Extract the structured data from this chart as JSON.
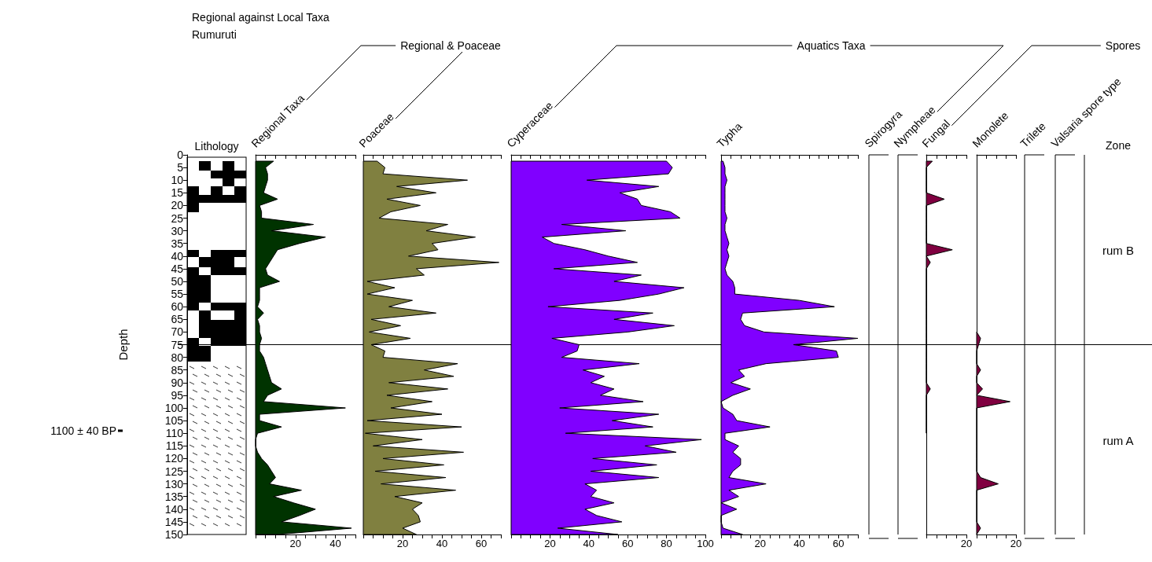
{
  "chart_data": [
    {
      "type": "other",
      "title": "Regional against Local Taxa",
      "subtitle": "Rumuruti",
      "xlabel": "Lithology"
    },
    {
      "type": "area",
      "orientation": "horizontal",
      "title": "Regional Taxa",
      "color": "#003300",
      "tick_labels": "x",
      "ylim": [
        150,
        0
      ],
      "xlim": [
        0,
        50
      ],
      "xticks": [
        {
          "value": 0,
          "label": null
        },
        {
          "value": 5,
          "label": null
        },
        {
          "value": 10,
          "label": null
        },
        {
          "value": 15,
          "label": null
        },
        20,
        {
          "value": 25,
          "label": null
        },
        {
          "value": 30,
          "label": null
        },
        {
          "value": 35,
          "label": null
        },
        40,
        {
          "value": 45,
          "label": null
        },
        {
          "value": 50,
          "label": null
        }
      ],
      "ref_lines": [
        {
          "axis": "y",
          "value": 75
        }
      ],
      "annotations": [
        "Regional & Poaceae",
        "1100 ± 40 BP"
      ],
      "x": [
        2.5,
        5,
        7.5,
        10,
        12.5,
        15,
        17.5,
        20,
        22.5,
        25,
        27.5,
        30,
        32.5,
        35,
        37.5,
        40,
        42.5,
        45,
        47.5,
        50,
        52.5,
        55,
        57.5,
        60,
        62.5,
        65,
        67.5,
        70,
        72.5,
        75,
        77.5,
        80,
        82.5,
        85,
        87.5,
        90,
        92.5,
        95,
        97.5,
        100,
        102.5,
        105,
        107.5,
        110,
        112.5,
        115,
        117.5,
        120,
        122.5,
        125,
        127.5,
        130,
        132.5,
        135,
        137.5,
        140,
        142.5,
        145,
        147.5,
        150
      ],
      "values": [
        9,
        5,
        6,
        6,
        5,
        4,
        11,
        2,
        3,
        3,
        29,
        8,
        35,
        22,
        11,
        9,
        7,
        5,
        6,
        12,
        2,
        2,
        2,
        1,
        4,
        1,
        2,
        2,
        3,
        2,
        2,
        4,
        5,
        6,
        7,
        8,
        13,
        6,
        4,
        45,
        2,
        2,
        13,
        1,
        0,
        0,
        1,
        3,
        6,
        8,
        10,
        7,
        23,
        9,
        19,
        30,
        22,
        13,
        48,
        11
      ]
    },
    {
      "type": "area",
      "orientation": "horizontal",
      "title": "Poaceae",
      "color": "#808040",
      "tick_labels": "x",
      "ylim": [
        150,
        0
      ],
      "xlim": [
        0,
        70
      ],
      "xticks": [
        {
          "value": 0,
          "label": null
        },
        {
          "value": 5,
          "label": null
        },
        {
          "value": 10,
          "label": null
        },
        {
          "value": 15,
          "label": null
        },
        20,
        {
          "value": 25,
          "label": null
        },
        {
          "value": 30,
          "label": null
        },
        {
          "value": 35,
          "label": null
        },
        40,
        {
          "value": 45,
          "label": null
        },
        {
          "value": 50,
          "label": null
        },
        {
          "value": 55,
          "label": null
        },
        60,
        {
          "value": 65,
          "label": null
        },
        {
          "value": 70,
          "label": null
        }
      ],
      "ref_lines": [
        {
          "axis": "y",
          "value": 75
        }
      ],
      "x": [
        2.5,
        5,
        7.5,
        10,
        12.5,
        15,
        17.5,
        20,
        22.5,
        25,
        27.5,
        30,
        32.5,
        35,
        37.5,
        40,
        42.5,
        45,
        47.5,
        50,
        52.5,
        55,
        57.5,
        60,
        62.5,
        65,
        67.5,
        70,
        72.5,
        75,
        77.5,
        80,
        82.5,
        85,
        87.5,
        90,
        92.5,
        95,
        97.5,
        100,
        102.5,
        105,
        107.5,
        110,
        112.5,
        115,
        117.5,
        120,
        122.5,
        125,
        127.5,
        130,
        132.5,
        135,
        137.5,
        140,
        142.5,
        145,
        147.5,
        150
      ],
      "values": [
        7,
        11,
        10,
        53,
        17,
        37,
        12,
        29,
        14,
        8,
        43,
        32,
        57,
        35,
        38,
        23,
        69,
        27,
        31,
        2,
        16,
        2,
        25,
        13,
        37,
        4,
        19,
        3,
        24,
        4,
        11,
        10,
        48,
        31,
        46,
        13,
        43,
        12,
        35,
        14,
        40,
        2,
        50,
        1,
        30,
        5,
        51,
        10,
        41,
        6,
        42,
        9,
        47,
        16,
        30,
        25,
        28,
        29,
        20,
        27
      ]
    },
    {
      "type": "area",
      "orientation": "horizontal",
      "title": "Cyperaceae",
      "color": "#8000ff",
      "tick_labels": "x",
      "ylim": [
        150,
        0
      ],
      "xlim": [
        0,
        100
      ],
      "xticks": [
        {
          "value": 0,
          "label": null
        },
        {
          "value": 5,
          "label": null
        },
        {
          "value": 10,
          "label": null
        },
        {
          "value": 15,
          "label": null
        },
        20,
        {
          "value": 25,
          "label": null
        },
        {
          "value": 30,
          "label": null
        },
        {
          "value": 35,
          "label": null
        },
        40,
        {
          "value": 45,
          "label": null
        },
        {
          "value": 50,
          "label": null
        },
        {
          "value": 55,
          "label": null
        },
        60,
        {
          "value": 65,
          "label": null
        },
        {
          "value": 70,
          "label": null
        },
        {
          "value": 75,
          "label": null
        },
        80,
        {
          "value": 85,
          "label": null
        },
        {
          "value": 90,
          "label": null
        },
        {
          "value": 95,
          "label": null
        },
        100
      ],
      "ref_lines": [
        {
          "axis": "y",
          "value": 75
        }
      ],
      "annotations": [
        "Aquatics Taxa"
      ],
      "x": [
        2.5,
        5,
        7.5,
        10,
        12.5,
        15,
        17.5,
        20,
        22.5,
        25,
        27.5,
        30,
        32.5,
        35,
        37.5,
        40,
        42.5,
        45,
        47.5,
        50,
        52.5,
        55,
        57.5,
        60,
        62.5,
        65,
        67.5,
        70,
        72.5,
        75,
        77.5,
        80,
        82.5,
        85,
        87.5,
        90,
        92.5,
        95,
        97.5,
        100,
        102.5,
        105,
        107.5,
        110,
        112.5,
        115,
        117.5,
        120,
        122.5,
        125,
        127.5,
        130,
        132.5,
        135,
        137.5,
        140,
        142.5,
        145,
        147.5,
        150
      ],
      "values": [
        80,
        83,
        81,
        39,
        76,
        56,
        65,
        67,
        82,
        87,
        26,
        59,
        16,
        22,
        38,
        50,
        65,
        22,
        67,
        53,
        89,
        76,
        56,
        19,
        73,
        53,
        84,
        60,
        21,
        35,
        34,
        26,
        66,
        37,
        48,
        41,
        53,
        46,
        68,
        25,
        76,
        52,
        73,
        28,
        98,
        69,
        85,
        42,
        75,
        41,
        76,
        38,
        44,
        41,
        53,
        38,
        44,
        57,
        24,
        55
      ]
    },
    {
      "type": "area",
      "orientation": "horizontal",
      "title": "Typha",
      "color": "#8000ff",
      "tick_labels": "x",
      "ylim": [
        150,
        0
      ],
      "xlim": [
        0,
        70
      ],
      "xticks": [
        {
          "value": 0,
          "label": null
        },
        {
          "value": 5,
          "label": null
        },
        {
          "value": 10,
          "label": null
        },
        {
          "value": 15,
          "label": null
        },
        20,
        {
          "value": 25,
          "label": null
        },
        {
          "value": 30,
          "label": null
        },
        {
          "value": 35,
          "label": null
        },
        40,
        {
          "value": 45,
          "label": null
        },
        {
          "value": 50,
          "label": null
        },
        {
          "value": 55,
          "label": null
        },
        60,
        {
          "value": 65,
          "label": null
        },
        {
          "value": 70,
          "label": null
        }
      ],
      "ref_lines": [
        {
          "axis": "y",
          "value": 75
        }
      ],
      "x": [
        2.5,
        5,
        7.5,
        10,
        12.5,
        15,
        17.5,
        20,
        22.5,
        25,
        27.5,
        30,
        32.5,
        35,
        37.5,
        40,
        42.5,
        45,
        47.5,
        50,
        52.5,
        55,
        57.5,
        60,
        62.5,
        65,
        67.5,
        70,
        72.5,
        75,
        77.5,
        80,
        82.5,
        85,
        87.5,
        90,
        92.5,
        95,
        97.5,
        100,
        102.5,
        105,
        107.5,
        110,
        112.5,
        115,
        117.5,
        120,
        122.5,
        125,
        127.5,
        130,
        132.5,
        135,
        137.5,
        140,
        142.5,
        145,
        147.5,
        150
      ],
      "values": [
        1,
        2,
        2,
        3,
        2,
        2,
        2,
        2,
        2,
        3,
        2,
        2,
        3,
        4,
        3,
        4,
        3,
        2,
        3,
        6,
        7,
        7,
        40,
        58,
        11,
        10,
        12,
        22,
        70,
        37,
        59,
        60,
        23,
        9,
        12,
        5,
        15,
        6,
        0,
        1,
        6,
        8,
        25,
        2,
        2,
        9,
        6,
        10,
        10,
        6,
        4,
        23,
        4,
        9,
        0,
        8,
        0,
        0,
        1,
        11
      ]
    },
    {
      "type": "other",
      "title": "Spirogyra"
    },
    {
      "type": "other",
      "title": "Nympheae"
    },
    {
      "type": "area",
      "orientation": "horizontal",
      "title": "Fungal",
      "color": "#800040",
      "tick_labels": "x",
      "ylim": [
        150,
        0
      ],
      "xlim": [
        0,
        20
      ],
      "xticks": [
        {
          "value": 0,
          "label": null
        },
        {
          "value": 5,
          "label": null
        },
        {
          "value": 10,
          "label": null
        },
        {
          "value": 15,
          "label": null
        },
        20
      ],
      "ref_lines": [
        {
          "axis": "y",
          "value": 75
        }
      ],
      "annotations": [
        "Spores"
      ],
      "x": [
        2.5,
        5,
        7.5,
        10,
        12.5,
        15,
        17.5,
        20,
        22.5,
        25,
        27.5,
        30,
        32.5,
        35,
        37.5,
        40,
        42.5,
        45,
        47.5,
        50,
        52.5,
        55,
        57.5,
        60,
        62.5,
        65,
        67.5,
        70,
        72.5,
        75,
        77.5,
        80,
        82.5,
        85,
        87.5,
        90,
        92.5,
        95,
        97.5,
        100,
        102.5,
        105,
        107.5,
        110
      ],
      "values": [
        3,
        0,
        0,
        0,
        0,
        0,
        9,
        0,
        0,
        0,
        0,
        0,
        0,
        0,
        13,
        0,
        2,
        0,
        0,
        0,
        0,
        0,
        0,
        0,
        0,
        0,
        0,
        0,
        0,
        0,
        0,
        0,
        0,
        0,
        0,
        0,
        2,
        0,
        0,
        0,
        0,
        0,
        0,
        0
      ]
    },
    {
      "type": "area",
      "orientation": "horizontal",
      "title": "Monolete",
      "color": "#800040",
      "ylabel": "Depth",
      "ylim": [
        150,
        0
      ],
      "yticks": [
        0,
        5,
        10,
        15,
        20,
        25,
        30,
        35,
        40,
        45,
        50,
        55,
        60,
        65,
        70,
        75,
        80,
        85,
        90,
        95,
        100,
        105,
        110,
        115,
        120,
        125,
        130,
        135,
        140,
        145,
        150
      ],
      "xlim": [
        0,
        20
      ],
      "xticks": [
        {
          "value": 0,
          "label": null
        },
        {
          "value": 5,
          "label": null
        },
        {
          "value": 10,
          "label": null
        },
        {
          "value": 15,
          "label": null
        },
        20
      ],
      "ref_lines": [
        {
          "axis": "y",
          "value": 75
        }
      ],
      "annotations": [
        "rum B",
        "rum A"
      ],
      "x": [
        70,
        72.5,
        75,
        77.5,
        80,
        82.5,
        85,
        87.5,
        90,
        92.5,
        95,
        97.5,
        100,
        102.5,
        105,
        107.5,
        110,
        112.5,
        115,
        117.5,
        120,
        122.5,
        125,
        127.5,
        130,
        132.5,
        135,
        137.5,
        140,
        142.5,
        145,
        147.5,
        150
      ],
      "values": [
        0,
        2,
        1,
        0,
        0,
        0,
        2,
        0,
        0,
        3,
        0,
        17,
        0,
        0,
        0,
        0,
        0,
        0,
        0,
        0,
        0,
        0,
        0,
        2,
        11,
        0,
        0,
        0,
        0,
        0,
        0,
        2,
        0
      ]
    },
    {
      "type": "other",
      "title": "Trilete"
    },
    {
      "type": "other",
      "title": "Valsaria spore type"
    },
    {
      "type": "other",
      "title": "Zone"
    }
  ]
}
